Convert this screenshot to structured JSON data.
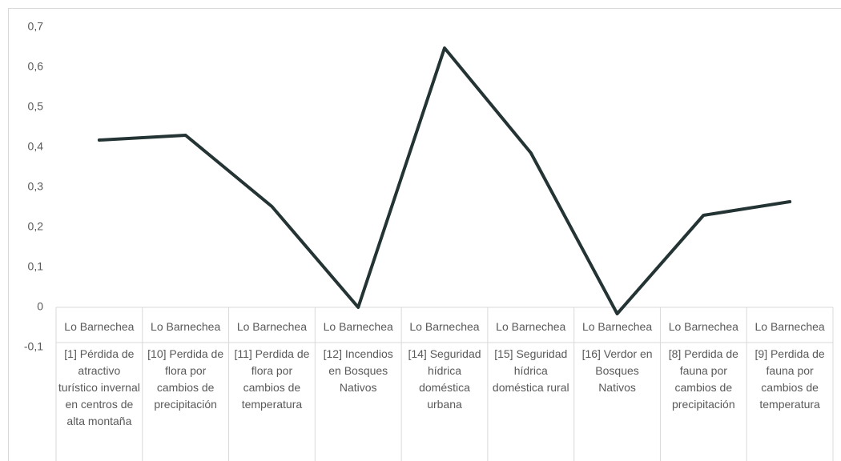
{
  "chart_data": {
    "type": "line",
    "groups": [
      "Lo Barnechea",
      "Lo Barnechea",
      "Lo Barnechea",
      "Lo Barnechea",
      "Lo Barnechea",
      "Lo Barnechea",
      "Lo Barnechea",
      "Lo Barnechea",
      "Lo Barnechea"
    ],
    "categories": [
      "[1] Pérdida de atractivo turístico invernal en centros de alta montaña",
      "[10] Perdida de flora por cambios de precipitación",
      "[11] Perdida de flora por cambios de temperatura",
      "[12] Incendios en Bosques Nativos",
      "[14] Seguridad hídrica doméstica urbana",
      "[15] Seguridad hídrica doméstica rural",
      "[16] Verdor en Bosques Nativos",
      "[8] Perdida de fauna por cambios de precipitación",
      "[9] Perdida de fauna por cambios de temperatura"
    ],
    "values": [
      0.418,
      0.43,
      0.252,
      0,
      0.648,
      0.386,
      -0.016,
      0.23,
      0.264
    ],
    "color": "#243333",
    "ylim": [
      -0.1,
      0.7
    ],
    "yticks": [
      {
        "value": -0.1,
        "label": "-0,1"
      },
      0,
      {
        "value": 0.1,
        "label": "0,1"
      },
      {
        "value": 0.2,
        "label": "0,2"
      },
      {
        "value": 0.3,
        "label": "0,3"
      },
      {
        "value": 0.4,
        "label": "0,4"
      },
      {
        "value": 0.5,
        "label": "0,5"
      },
      {
        "value": 0.6,
        "label": "0,6"
      },
      {
        "value": 0.7,
        "label": "0,7"
      }
    ],
    "grid": false
  }
}
